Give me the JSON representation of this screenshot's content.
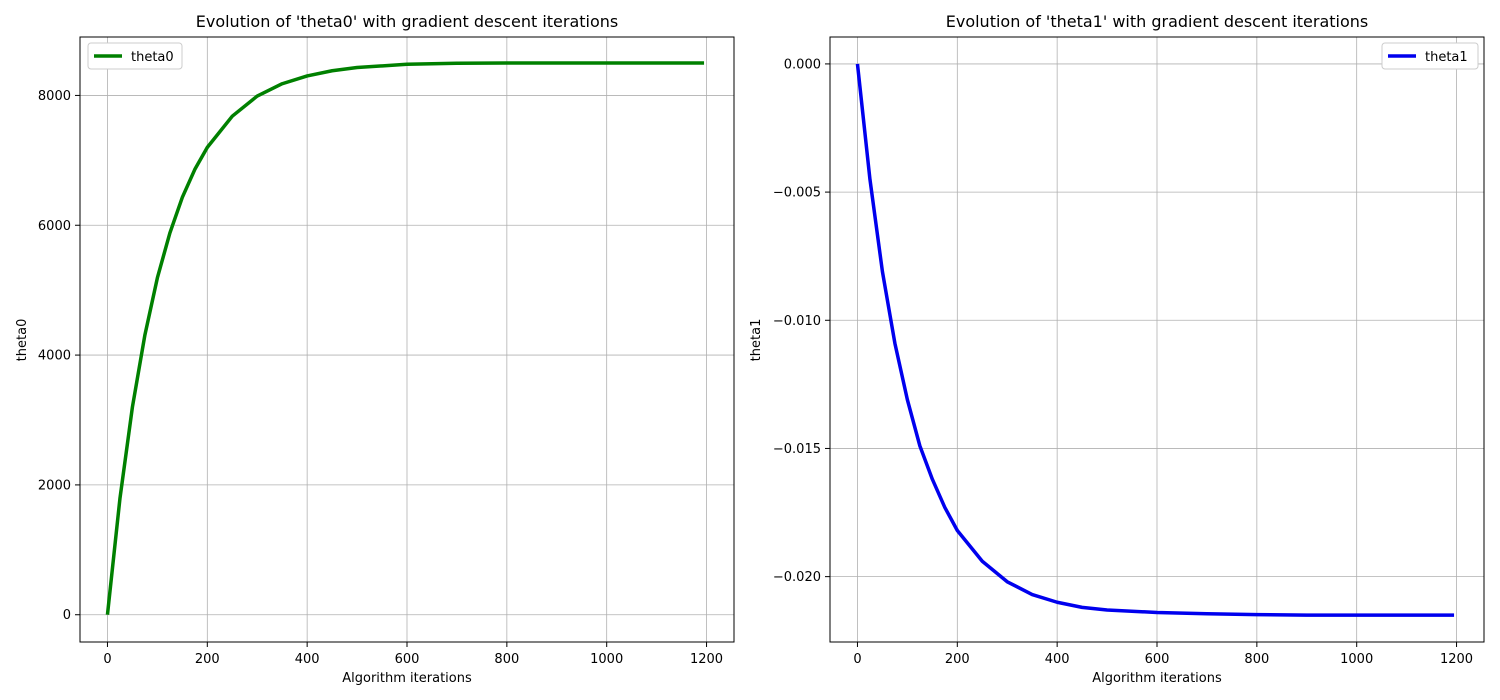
{
  "chart_data": [
    {
      "type": "line",
      "title": "Evolution of 'theta0' with gradient descent iterations",
      "xlabel": "Algorithm iterations",
      "ylabel": "theta0",
      "xlim": [
        -55,
        1255
      ],
      "ylim": [
        -420,
        8900
      ],
      "xticks": [
        0,
        200,
        400,
        600,
        800,
        1000,
        1200
      ],
      "yticks": [
        0,
        2000,
        4000,
        6000,
        8000
      ],
      "ytick_labels": [
        "0",
        "2000",
        "4000",
        "6000",
        "8000"
      ],
      "grid": true,
      "legend_position": "upper-left",
      "series": [
        {
          "name": "theta0",
          "color": "#008000",
          "x": [
            0,
            25,
            50,
            75,
            100,
            125,
            150,
            175,
            200,
            250,
            300,
            350,
            400,
            450,
            500,
            600,
            700,
            800,
            900,
            1000,
            1100,
            1195
          ],
          "y": [
            0,
            1790,
            3200,
            4310,
            5190,
            5880,
            6430,
            6860,
            7200,
            7680,
            7990,
            8180,
            8300,
            8380,
            8430,
            8480,
            8495,
            8500,
            8500,
            8500,
            8500,
            8500
          ]
        }
      ]
    },
    {
      "type": "line",
      "title": "Evolution of 'theta1' with gradient descent iterations",
      "xlabel": "Algorithm iterations",
      "ylabel": "theta1",
      "xlim": [
        -55,
        1255
      ],
      "ylim": [
        -0.02255,
        0.00105
      ],
      "xticks": [
        0,
        200,
        400,
        600,
        800,
        1000,
        1200
      ],
      "yticks": [
        0,
        -0.005,
        -0.01,
        -0.015,
        -0.02
      ],
      "ytick_labels": [
        "0.000",
        "−0.005",
        "−0.010",
        "−0.015",
        "−0.020"
      ],
      "grid": true,
      "legend_position": "upper-right",
      "series": [
        {
          "name": "theta1",
          "color": "#0000ee",
          "x": [
            0,
            25,
            50,
            75,
            100,
            125,
            150,
            175,
            200,
            250,
            300,
            350,
            400,
            450,
            500,
            600,
            700,
            800,
            900,
            1000,
            1100,
            1195
          ],
          "y": [
            0,
            -0.0045,
            -0.0081,
            -0.0109,
            -0.0131,
            -0.0149,
            -0.0162,
            -0.0173,
            -0.0182,
            -0.0194,
            -0.0202,
            -0.0207,
            -0.021,
            -0.0212,
            -0.0213,
            -0.0214,
            -0.02145,
            -0.02148,
            -0.0215,
            -0.0215,
            -0.0215,
            -0.0215
          ]
        }
      ]
    }
  ]
}
